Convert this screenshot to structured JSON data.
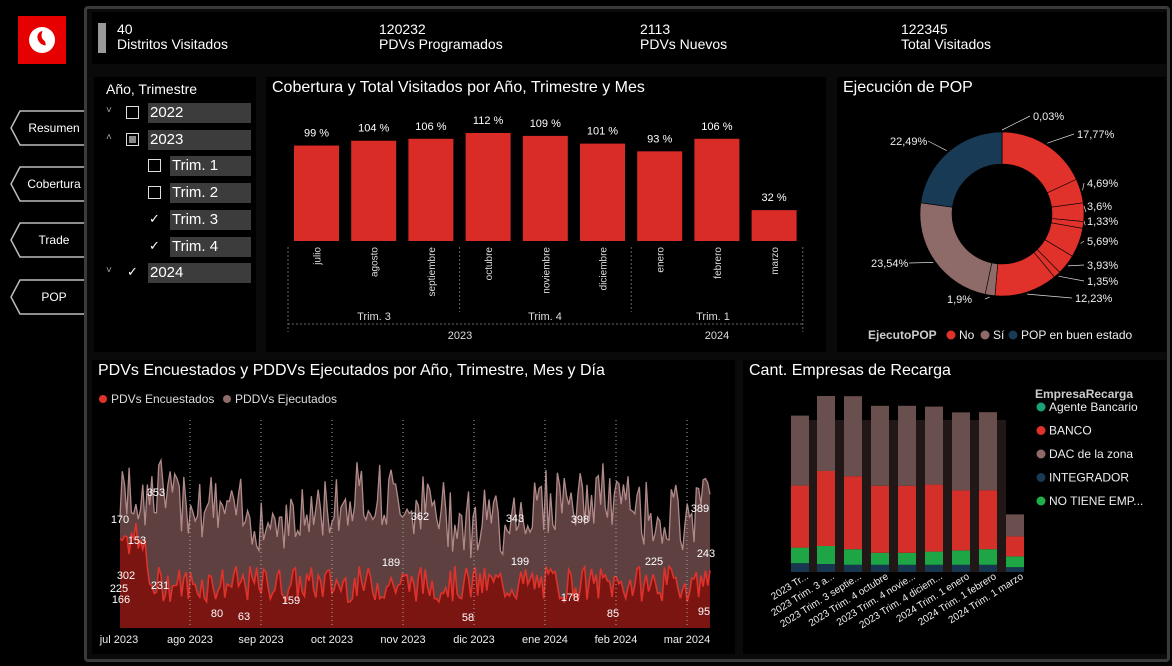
{
  "nav": {
    "items": [
      {
        "label": "Resumen"
      },
      {
        "label": "Cobertura"
      },
      {
        "label": "Trade"
      },
      {
        "label": "POP"
      }
    ]
  },
  "kpis": [
    {
      "value": "40",
      "label": "Distritos Visitados"
    },
    {
      "value": "120232",
      "label": "PDVs Programados"
    },
    {
      "value": "2113",
      "label": "PDVs Nuevos"
    },
    {
      "value": "122345",
      "label": "Total Visitados"
    }
  ],
  "slicer": {
    "title": "Año, Trimestre",
    "items": [
      {
        "label": "2022",
        "level": 0,
        "state": "unchecked",
        "chevron": "˅"
      },
      {
        "label": "2023",
        "level": 0,
        "state": "partial",
        "chevron": "˄"
      },
      {
        "label": "Trim. 1",
        "level": 1,
        "state": "unchecked",
        "chevron": ""
      },
      {
        "label": "Trim. 2",
        "level": 1,
        "state": "unchecked",
        "chevron": ""
      },
      {
        "label": "Trim. 3",
        "level": 1,
        "state": "checked",
        "chevron": ""
      },
      {
        "label": "Trim. 4",
        "level": 1,
        "state": "checked",
        "chevron": ""
      },
      {
        "label": "2024",
        "level": 0,
        "state": "checked",
        "chevron": "˅"
      }
    ]
  },
  "colors": {
    "accent": "#d92c27",
    "no": "#e0322b",
    "si": "#8e6a69",
    "pop_ok": "#183a55",
    "dark_red": "#7a1512",
    "mauve": "#6e4b4b",
    "agente_bancario": "#1aa17a",
    "banco": "#e0322b",
    "dac": "#8e6a69",
    "integrador": "#183a55",
    "no_tiene": "#1fae4a"
  },
  "chart_data": [
    {
      "type": "bar",
      "title": "Cobertura y Total Visitados por Año, Trimestre y Mes",
      "categories": [
        "julio",
        "agosto",
        "septiembre",
        "octubre",
        "noviembre",
        "diciembre",
        "enero",
        "febrero",
        "marzo"
      ],
      "values": [
        99,
        104,
        106,
        112,
        109,
        101,
        93,
        106,
        32
      ],
      "value_labels": [
        "99 %",
        "104 %",
        "106 %",
        "112 %",
        "109 %",
        "101 %",
        "93 %",
        "106 %",
        "32 %"
      ],
      "quarters": [
        "Trim. 3",
        "Trim. 4",
        "Trim. 1"
      ],
      "years": [
        "2023",
        "2024"
      ],
      "ylim": [
        0,
        120
      ]
    },
    {
      "type": "pie",
      "title": "Ejecución de POP",
      "legend_title": "EjecutoPOP",
      "legend": [
        "No",
        "Sí",
        "POP en buen estado"
      ],
      "slices": [
        {
          "category": "No",
          "value": 0.03,
          "label": "0,03%"
        },
        {
          "category": "No",
          "value": 17.77,
          "label": "17,77%"
        },
        {
          "category": "No",
          "value": 4.69,
          "label": "4,69%"
        },
        {
          "category": "No",
          "value": 3.6,
          "label": "3,6%"
        },
        {
          "category": "No",
          "value": 1.33,
          "label": "1,33%"
        },
        {
          "category": "No",
          "value": 5.69,
          "label": "5,69%"
        },
        {
          "category": "No",
          "value": 3.93,
          "label": "3,93%"
        },
        {
          "category": "No",
          "value": 1.35,
          "label": "1,35%"
        },
        {
          "category": "No",
          "value": 12.23,
          "label": "12,23%"
        },
        {
          "category": "Sí",
          "value": 1.9,
          "label": "1,9%"
        },
        {
          "category": "Sí",
          "value": 23.54,
          "label": "23,54%"
        },
        {
          "category": "POP en buen estado",
          "value": 22.49,
          "label": "22,49%"
        }
      ],
      "legend_position": "bottom"
    },
    {
      "type": "area",
      "title": "PDVs Encuestados y PDDVs Ejecutados por Año, Trimestre, Mes y Día",
      "x_ticks": [
        "jul 2023",
        "ago 2023",
        "sep 2023",
        "oct 2023",
        "nov 2023",
        "dic 2023",
        "ene 2024",
        "feb 2024",
        "mar 2024"
      ],
      "series": [
        {
          "name": "PDVs Encuestados",
          "values": [
            170,
            225,
            302,
            166,
            231,
            153,
            80,
            63,
            159,
            189,
            58,
            199,
            178,
            85,
            225,
            95
          ],
          "labels": [
            "170",
            "225",
            "302",
            "166",
            "231",
            "153",
            "80",
            "63",
            "159",
            "189",
            "58",
            "199",
            "178",
            "85",
            "225",
            "95"
          ]
        },
        {
          "name": "PDDVs Ejecutados",
          "values": [
            353,
            362,
            343,
            398,
            389,
            243
          ],
          "labels": [
            "353",
            "362",
            "343",
            "398",
            "389",
            "243"
          ]
        }
      ],
      "ylim": [
        0,
        600
      ],
      "legend_position": "top-left"
    },
    {
      "type": "area",
      "title": "Cant. Empresas de Recarga",
      "legend_title": "EmpresaRecarga",
      "legend": [
        "Agente Bancario",
        "BANCO",
        "DAC de la zona",
        "INTEGRADOR",
        "NO TIENE EMP..."
      ],
      "categories": [
        "2023 Tr...",
        "2023 Trim. 3 a...",
        "2023 Trim. 3 septie...",
        "2023 Trim. 4 octubre",
        "2023 Trim. 4 novie...",
        "2023 Trim. 4 diciem...",
        "2024 Trim. 1 enero",
        "2024 Trim. 1 febrero",
        "2024 Trim. 1 marzo"
      ],
      "legend_position": "right"
    }
  ]
}
